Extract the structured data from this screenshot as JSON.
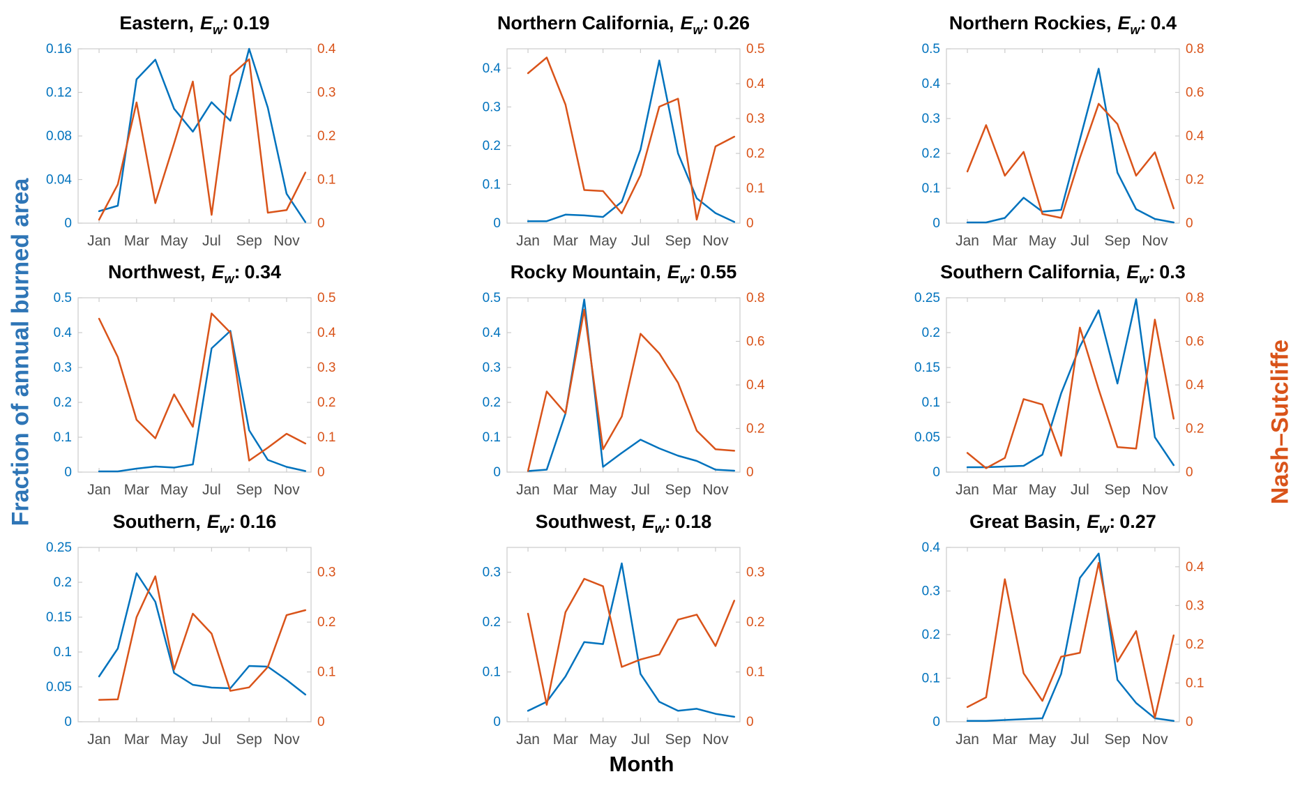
{
  "figure": {
    "left_axis_label": "Fraction of annual burned area",
    "right_axis_label": "Nash–Sutcliffe",
    "x_axis_label": "Month",
    "colors": {
      "burned_area_line": "#0072BD",
      "nash_sutcliffe_line": "#D95319",
      "left_tick_text": "#0072BD",
      "right_tick_text": "#D95319",
      "left_label_text": "#2E75B6",
      "right_label_text": "#D95319",
      "x_tick_text": "#4D4D4D",
      "axis_box": "#CBCBCB",
      "title_text": "#000000"
    },
    "x_ticks": {
      "labels": [
        "Jan",
        "Mar",
        "May",
        "Jul",
        "Sep",
        "Nov"
      ],
      "months": [
        1,
        3,
        5,
        7,
        9,
        11
      ]
    },
    "months": [
      "Jan",
      "Feb",
      "Mar",
      "Apr",
      "May",
      "Jun",
      "Jul",
      "Aug",
      "Sep",
      "Oct",
      "Nov",
      "Dec"
    ]
  },
  "chart_data": [
    {
      "type": "line",
      "key": "eastern",
      "title": {
        "region": "Eastern,",
        "metric": "E",
        "metric_sub": "w",
        "colon": ":",
        "value": "0.19"
      },
      "left_ylim": [
        0,
        0.16
      ],
      "left_ticks": [
        0,
        0.04,
        0.08,
        0.12,
        0.16
      ],
      "right_ylim": [
        0,
        0.4
      ],
      "right_ticks": [
        0,
        0.1,
        0.2,
        0.3,
        0.4
      ],
      "series": [
        {
          "name": "Fraction of annual burned area",
          "axis": "left",
          "color": "#0072BD",
          "values": [
            0.011,
            0.016,
            0.132,
            0.15,
            0.105,
            0.084,
            0.111,
            0.094,
            0.16,
            0.106,
            0.027,
            0.001
          ]
        },
        {
          "name": "Nash–Sutcliffe",
          "axis": "right",
          "color": "#D95319",
          "values": [
            0.008,
            0.089,
            0.277,
            0.046,
            0.183,
            0.325,
            0.019,
            0.338,
            0.376,
            0.024,
            0.03,
            0.116
          ]
        }
      ]
    },
    {
      "type": "line",
      "key": "northern-california",
      "title": {
        "region": "Northern California,",
        "metric": "E",
        "metric_sub": "w",
        "colon": ":",
        "value": "0.26"
      },
      "left_ylim": [
        0,
        0.45
      ],
      "left_ticks": [
        0,
        0.1,
        0.2,
        0.3,
        0.4
      ],
      "right_ylim": [
        0,
        0.5
      ],
      "right_ticks": [
        0,
        0.1,
        0.2,
        0.3,
        0.4,
        0.5
      ],
      "series": [
        {
          "name": "Fraction of annual burned area",
          "axis": "left",
          "color": "#0072BD",
          "values": [
            0.005,
            0.005,
            0.022,
            0.02,
            0.016,
            0.055,
            0.19,
            0.42,
            0.18,
            0.064,
            0.026,
            0.003
          ]
        },
        {
          "name": "Nash–Sutcliffe",
          "axis": "right",
          "color": "#D95319",
          "values": [
            0.43,
            0.475,
            0.34,
            0.095,
            0.092,
            0.028,
            0.138,
            0.334,
            0.357,
            0.01,
            0.22,
            0.248
          ]
        }
      ]
    },
    {
      "type": "line",
      "key": "northern-rockies",
      "title": {
        "region": "Northern Rockies,",
        "metric": "E",
        "metric_sub": "w",
        "colon": ":",
        "value": "0.4"
      },
      "left_ylim": [
        0,
        0.5
      ],
      "left_ticks": [
        0,
        0.1,
        0.2,
        0.3,
        0.4,
        0.5
      ],
      "right_ylim": [
        0,
        0.8
      ],
      "right_ticks": [
        0,
        0.2,
        0.4,
        0.6,
        0.8
      ],
      "series": [
        {
          "name": "Fraction of annual burned area",
          "axis": "left",
          "color": "#0072BD",
          "values": [
            0.002,
            0.002,
            0.015,
            0.073,
            0.033,
            0.038,
            0.24,
            0.443,
            0.145,
            0.04,
            0.012,
            0.002
          ]
        },
        {
          "name": "Nash–Sutcliffe",
          "axis": "right",
          "color": "#D95319",
          "values": [
            0.237,
            0.45,
            0.218,
            0.327,
            0.042,
            0.024,
            0.3,
            0.548,
            0.455,
            0.218,
            0.325,
            0.068
          ]
        }
      ]
    },
    {
      "type": "line",
      "key": "northwest",
      "title": {
        "region": "Northwest,",
        "metric": "E",
        "metric_sub": "w",
        "colon": ":",
        "value": "0.34"
      },
      "left_ylim": [
        0,
        0.5
      ],
      "left_ticks": [
        0,
        0.1,
        0.2,
        0.3,
        0.4,
        0.5
      ],
      "right_ylim": [
        0,
        0.5
      ],
      "right_ticks": [
        0,
        0.1,
        0.2,
        0.3,
        0.4,
        0.5
      ],
      "series": [
        {
          "name": "Fraction of annual burned area",
          "axis": "left",
          "color": "#0072BD",
          "values": [
            0.002,
            0.002,
            0.01,
            0.016,
            0.013,
            0.022,
            0.355,
            0.405,
            0.12,
            0.035,
            0.015,
            0.003
          ]
        },
        {
          "name": "Nash–Sutcliffe",
          "axis": "right",
          "color": "#D95319",
          "values": [
            0.44,
            0.33,
            0.15,
            0.097,
            0.223,
            0.13,
            0.455,
            0.4,
            0.033,
            0.07,
            0.11,
            0.082
          ]
        }
      ]
    },
    {
      "type": "line",
      "key": "rocky-mountain",
      "title": {
        "region": "Rocky Mountain,",
        "metric": "E",
        "metric_sub": "w",
        "colon": ":",
        "value": "0.55"
      },
      "left_ylim": [
        0,
        0.5
      ],
      "left_ticks": [
        0,
        0.1,
        0.2,
        0.3,
        0.4,
        0.5
      ],
      "right_ylim": [
        0,
        0.8
      ],
      "right_ticks": [
        0,
        0.2,
        0.4,
        0.6,
        0.8
      ],
      "series": [
        {
          "name": "Fraction of annual burned area",
          "axis": "left",
          "color": "#0072BD",
          "values": [
            0.003,
            0.007,
            0.168,
            0.495,
            0.015,
            0.055,
            0.093,
            0.068,
            0.047,
            0.032,
            0.007,
            0.004
          ]
        },
        {
          "name": "Nash–Sutcliffe",
          "axis": "right",
          "color": "#D95319",
          "values": [
            0.005,
            0.37,
            0.27,
            0.745,
            0.105,
            0.255,
            0.635,
            0.545,
            0.41,
            0.19,
            0.105,
            0.098
          ]
        }
      ]
    },
    {
      "type": "line",
      "key": "southern-california",
      "title": {
        "region": "Southern California,",
        "metric": "E",
        "metric_sub": "w",
        "colon": ":",
        "value": "0.3"
      },
      "left_ylim": [
        0,
        0.25
      ],
      "left_ticks": [
        0,
        0.05,
        0.1,
        0.15,
        0.2,
        0.25
      ],
      "right_ylim": [
        0,
        0.8
      ],
      "right_ticks": [
        0,
        0.2,
        0.4,
        0.6,
        0.8
      ],
      "series": [
        {
          "name": "Fraction of annual burned area",
          "axis": "left",
          "color": "#0072BD",
          "values": [
            0.007,
            0.007,
            0.008,
            0.009,
            0.025,
            0.113,
            0.18,
            0.232,
            0.127,
            0.248,
            0.05,
            0.01
          ]
        },
        {
          "name": "Nash–Sutcliffe",
          "axis": "right",
          "color": "#D95319",
          "values": [
            0.088,
            0.018,
            0.065,
            0.335,
            0.31,
            0.075,
            0.663,
            0.38,
            0.115,
            0.108,
            0.7,
            0.245
          ]
        }
      ]
    },
    {
      "type": "line",
      "key": "southern",
      "title": {
        "region": "Southern,",
        "metric": "E",
        "metric_sub": "w",
        "colon": ":",
        "value": "0.16"
      },
      "left_ylim": [
        0,
        0.25
      ],
      "left_ticks": [
        0,
        0.05,
        0.1,
        0.15,
        0.2,
        0.25
      ],
      "right_ylim": [
        0,
        0.35
      ],
      "right_ticks": [
        0,
        0.1,
        0.2,
        0.3
      ],
      "series": [
        {
          "name": "Fraction of annual burned area",
          "axis": "left",
          "color": "#0072BD",
          "values": [
            0.065,
            0.105,
            0.213,
            0.172,
            0.07,
            0.053,
            0.049,
            0.048,
            0.08,
            0.079,
            0.06,
            0.039
          ]
        },
        {
          "name": "Nash–Sutcliffe",
          "axis": "right",
          "color": "#D95319",
          "values": [
            0.044,
            0.045,
            0.21,
            0.292,
            0.105,
            0.217,
            0.177,
            0.062,
            0.069,
            0.11,
            0.214,
            0.224
          ]
        }
      ]
    },
    {
      "type": "line",
      "key": "southwest",
      "title": {
        "region": "Southwest,",
        "metric": "E",
        "metric_sub": "w",
        "colon": ":",
        "value": "0.18"
      },
      "left_ylim": [
        0,
        0.35
      ],
      "left_ticks": [
        0,
        0.1,
        0.2,
        0.3
      ],
      "right_ylim": [
        0,
        0.35
      ],
      "right_ticks": [
        0,
        0.1,
        0.2,
        0.3
      ],
      "series": [
        {
          "name": "Fraction of annual burned area",
          "axis": "left",
          "color": "#0072BD",
          "values": [
            0.022,
            0.04,
            0.091,
            0.16,
            0.156,
            0.318,
            0.096,
            0.04,
            0.022,
            0.026,
            0.016,
            0.01
          ]
        },
        {
          "name": "Nash–Sutcliffe",
          "axis": "right",
          "color": "#D95319",
          "values": [
            0.217,
            0.034,
            0.22,
            0.287,
            0.272,
            0.11,
            0.125,
            0.135,
            0.205,
            0.215,
            0.152,
            0.243
          ]
        }
      ]
    },
    {
      "type": "line",
      "key": "great-basin",
      "title": {
        "region": "Great Basin,",
        "metric": "E",
        "metric_sub": "w",
        "colon": ":",
        "value": "0.27"
      },
      "left_ylim": [
        0,
        0.4
      ],
      "left_ticks": [
        0,
        0.1,
        0.2,
        0.3,
        0.4
      ],
      "right_ylim": [
        0,
        0.45
      ],
      "right_ticks": [
        0,
        0.1,
        0.2,
        0.3,
        0.4
      ],
      "series": [
        {
          "name": "Fraction of annual burned area",
          "axis": "left",
          "color": "#0072BD",
          "values": [
            0.002,
            0.002,
            0.004,
            0.006,
            0.008,
            0.11,
            0.33,
            0.386,
            0.096,
            0.043,
            0.008,
            0.002
          ]
        },
        {
          "name": "Nash–Sutcliffe",
          "axis": "right",
          "color": "#D95319",
          "values": [
            0.038,
            0.063,
            0.368,
            0.125,
            0.054,
            0.168,
            0.178,
            0.41,
            0.155,
            0.234,
            0.01,
            0.223
          ]
        }
      ]
    }
  ]
}
